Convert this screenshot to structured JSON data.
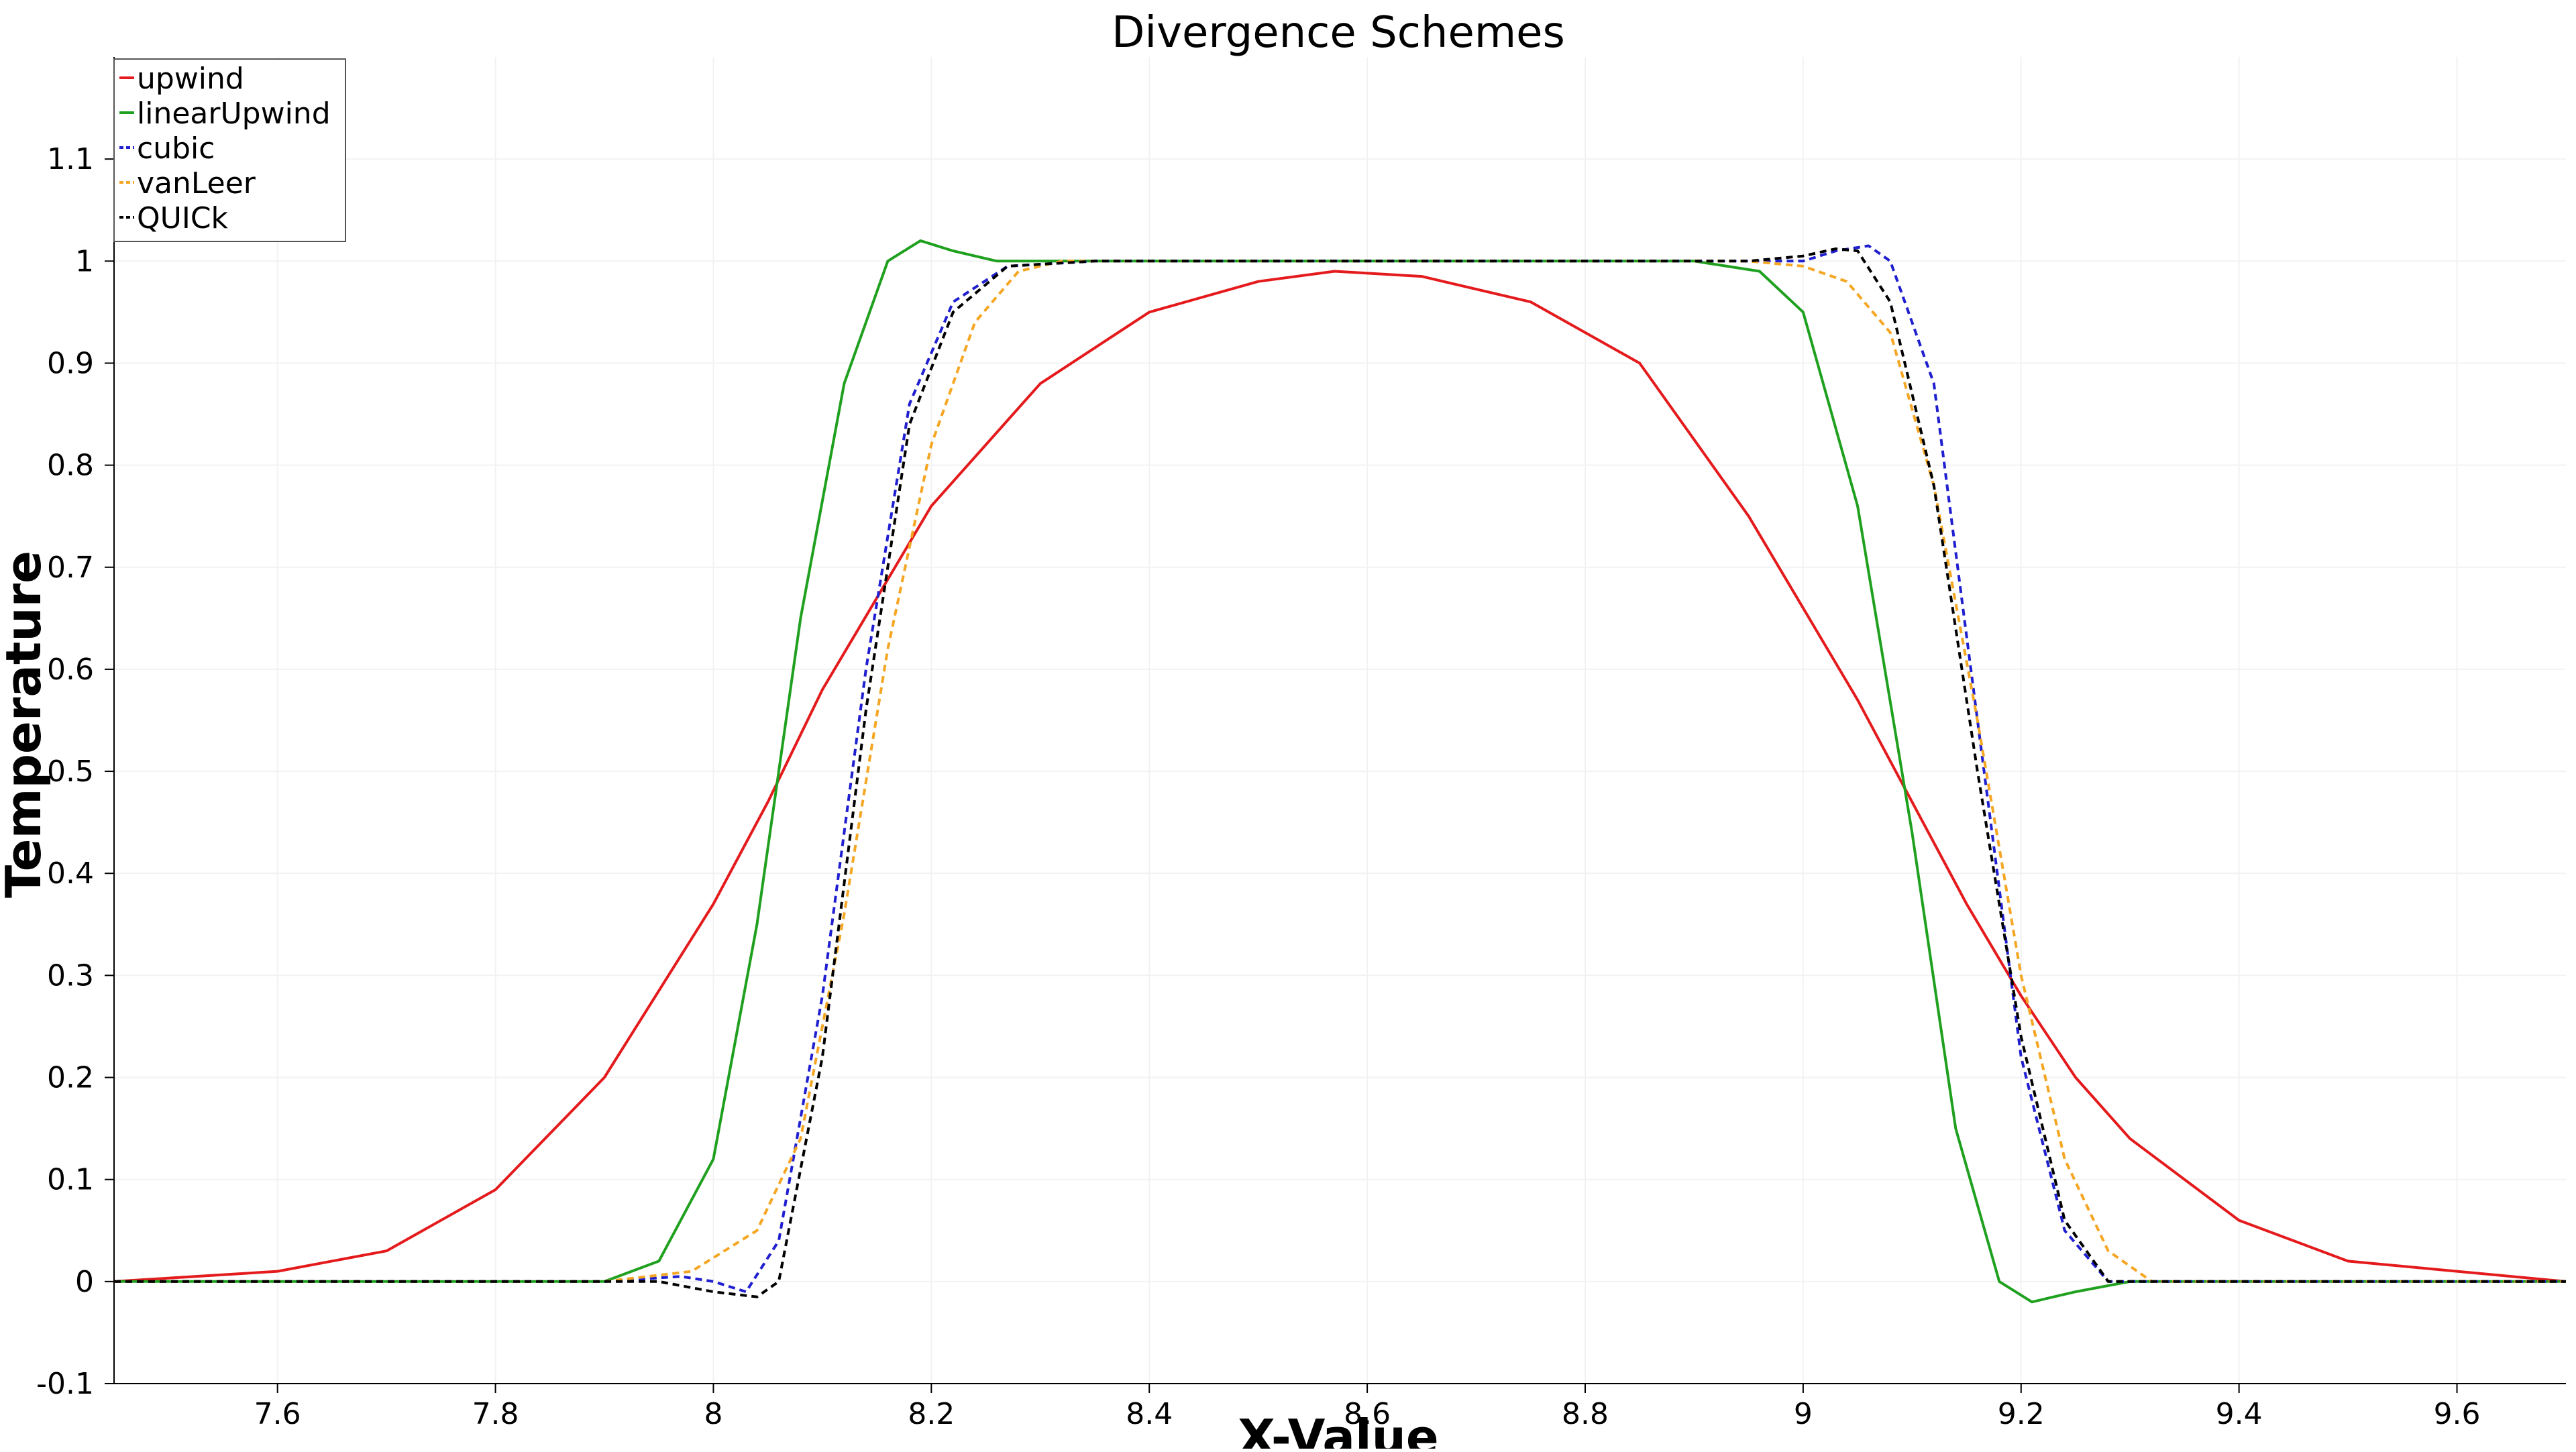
{
  "chart_data": {
    "type": "line",
    "title": "Divergence Schemes",
    "xlabel": "X-Value",
    "ylabel": "Temperature",
    "xlim": [
      7.45,
      9.7
    ],
    "ylim": [
      -0.1,
      1.2
    ],
    "x_ticks": [
      "7.6",
      "7.8",
      "8",
      "8.2",
      "8.4",
      "8.6",
      "8.8",
      "9",
      "9.2",
      "9.4",
      "9.6"
    ],
    "x_tick_values": [
      7.6,
      7.8,
      8.0,
      8.2,
      8.4,
      8.6,
      8.8,
      9.0,
      9.2,
      9.4,
      9.6
    ],
    "y_ticks": [
      "-0.1",
      "0",
      "0.1",
      "0.2",
      "0.3",
      "0.4",
      "0.5",
      "0.6",
      "0.7",
      "0.8",
      "0.9",
      "1",
      "1.1"
    ],
    "y_tick_values": [
      -0.1,
      0,
      0.1,
      0.2,
      0.3,
      0.4,
      0.5,
      0.6,
      0.7,
      0.8,
      0.9,
      1.0,
      1.1
    ],
    "grid": true,
    "legend_position": "top-left",
    "series": [
      {
        "name": "upwind",
        "color": "#e41a1c",
        "style": "solid",
        "points": [
          [
            7.45,
            0.0
          ],
          [
            7.6,
            0.01
          ],
          [
            7.7,
            0.03
          ],
          [
            7.8,
            0.09
          ],
          [
            7.9,
            0.2
          ],
          [
            8.0,
            0.37
          ],
          [
            8.05,
            0.47
          ],
          [
            8.1,
            0.58
          ],
          [
            8.2,
            0.76
          ],
          [
            8.3,
            0.88
          ],
          [
            8.4,
            0.95
          ],
          [
            8.5,
            0.98
          ],
          [
            8.57,
            0.99
          ],
          [
            8.65,
            0.985
          ],
          [
            8.75,
            0.96
          ],
          [
            8.85,
            0.9
          ],
          [
            8.95,
            0.75
          ],
          [
            9.0,
            0.66
          ],
          [
            9.05,
            0.57
          ],
          [
            9.1,
            0.47
          ],
          [
            9.15,
            0.37
          ],
          [
            9.2,
            0.28
          ],
          [
            9.25,
            0.2
          ],
          [
            9.3,
            0.14
          ],
          [
            9.4,
            0.06
          ],
          [
            9.5,
            0.02
          ],
          [
            9.6,
            0.01
          ],
          [
            9.7,
            0.0
          ]
        ]
      },
      {
        "name": "linearUpwind",
        "color": "#1fa01f",
        "style": "solid",
        "points": [
          [
            7.45,
            0.0
          ],
          [
            7.9,
            0.0
          ],
          [
            7.95,
            0.02
          ],
          [
            8.0,
            0.12
          ],
          [
            8.04,
            0.35
          ],
          [
            8.08,
            0.65
          ],
          [
            8.12,
            0.88
          ],
          [
            8.16,
            1.0
          ],
          [
            8.19,
            1.02
          ],
          [
            8.22,
            1.01
          ],
          [
            8.26,
            1.0
          ],
          [
            8.9,
            1.0
          ],
          [
            8.96,
            0.99
          ],
          [
            9.0,
            0.95
          ],
          [
            9.05,
            0.76
          ],
          [
            9.1,
            0.44
          ],
          [
            9.14,
            0.15
          ],
          [
            9.18,
            0.0
          ],
          [
            9.21,
            -0.02
          ],
          [
            9.25,
            -0.01
          ],
          [
            9.3,
            0.0
          ],
          [
            9.7,
            0.0
          ]
        ]
      },
      {
        "name": "cubic",
        "color": "#1f1fd0",
        "style": "dashed",
        "points": [
          [
            7.45,
            0.0
          ],
          [
            7.9,
            0.0
          ],
          [
            7.97,
            0.005
          ],
          [
            8.0,
            0.0
          ],
          [
            8.03,
            -0.01
          ],
          [
            8.06,
            0.04
          ],
          [
            8.1,
            0.28
          ],
          [
            8.14,
            0.6
          ],
          [
            8.18,
            0.86
          ],
          [
            8.22,
            0.96
          ],
          [
            8.27,
            0.995
          ],
          [
            8.35,
            1.0
          ],
          [
            8.95,
            1.0
          ],
          [
            9.0,
            1.0
          ],
          [
            9.03,
            1.01
          ],
          [
            9.06,
            1.015
          ],
          [
            9.08,
            1.0
          ],
          [
            9.12,
            0.88
          ],
          [
            9.16,
            0.55
          ],
          [
            9.2,
            0.22
          ],
          [
            9.24,
            0.05
          ],
          [
            9.28,
            0.0
          ],
          [
            9.7,
            0.0
          ]
        ]
      },
      {
        "name": "vanLeer",
        "color": "#f5a623",
        "style": "dashed",
        "points": [
          [
            7.45,
            0.0
          ],
          [
            7.9,
            0.0
          ],
          [
            7.98,
            0.01
          ],
          [
            8.04,
            0.05
          ],
          [
            8.08,
            0.14
          ],
          [
            8.12,
            0.36
          ],
          [
            8.16,
            0.62
          ],
          [
            8.2,
            0.82
          ],
          [
            8.24,
            0.94
          ],
          [
            8.28,
            0.99
          ],
          [
            8.32,
            1.0
          ],
          [
            8.95,
            1.0
          ],
          [
            9.0,
            0.995
          ],
          [
            9.04,
            0.98
          ],
          [
            9.08,
            0.93
          ],
          [
            9.12,
            0.78
          ],
          [
            9.16,
            0.55
          ],
          [
            9.2,
            0.3
          ],
          [
            9.24,
            0.12
          ],
          [
            9.28,
            0.03
          ],
          [
            9.32,
            0.0
          ],
          [
            9.7,
            0.0
          ]
        ]
      },
      {
        "name": "QUICk",
        "color": "#000000",
        "style": "dashed",
        "points": [
          [
            7.45,
            0.0
          ],
          [
            7.95,
            0.0
          ],
          [
            8.0,
            -0.01
          ],
          [
            8.04,
            -0.015
          ],
          [
            8.06,
            0.0
          ],
          [
            8.1,
            0.22
          ],
          [
            8.14,
            0.56
          ],
          [
            8.18,
            0.84
          ],
          [
            8.22,
            0.95
          ],
          [
            8.27,
            0.995
          ],
          [
            8.35,
            1.0
          ],
          [
            8.95,
            1.0
          ],
          [
            9.0,
            1.005
          ],
          [
            9.03,
            1.012
          ],
          [
            9.05,
            1.01
          ],
          [
            9.08,
            0.96
          ],
          [
            9.12,
            0.78
          ],
          [
            9.16,
            0.5
          ],
          [
            9.2,
            0.24
          ],
          [
            9.24,
            0.06
          ],
          [
            9.28,
            0.0
          ],
          [
            9.7,
            0.0
          ]
        ]
      }
    ]
  }
}
